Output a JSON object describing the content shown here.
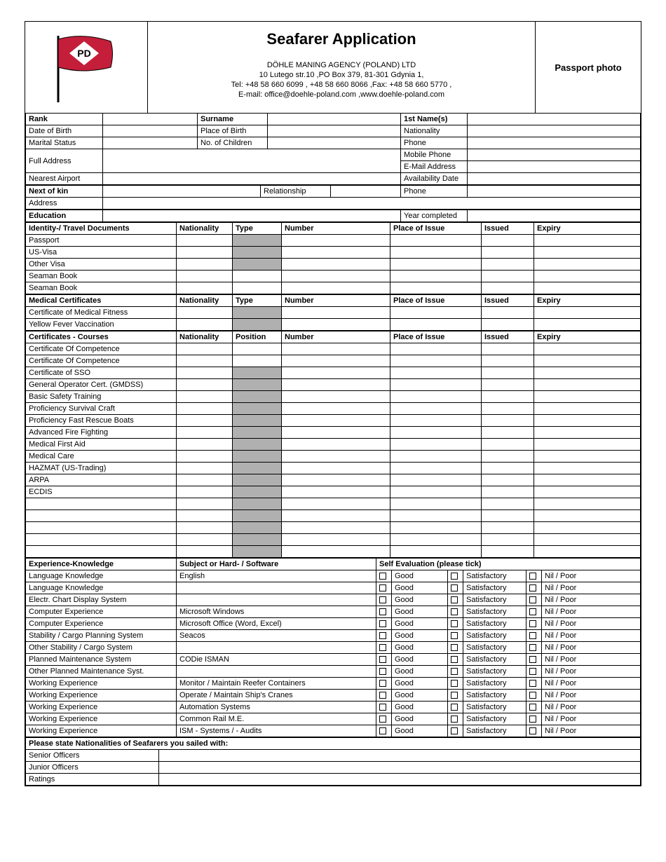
{
  "header": {
    "title": "Seafarer Application",
    "agency": "DÖHLE MANING AGENCY (POLAND) LTD",
    "address": "10 Lutego str.10 ,PO Box 379, 81-301 Gdynia 1,",
    "contact": "Tel: +48 58 660 6099 , +48 58 660 8066 ,Fax: +48 58 660 5770 ,",
    "email": "E-mail: office@doehle-poland.com ,www.doehle-poland.com",
    "photo_label": "Passport photo",
    "logo_text": "PD",
    "logo_flag_color": "#c41e3a",
    "logo_diamond_color": "#ffffff"
  },
  "personal": {
    "rank": "Rank",
    "surname": "Surname",
    "first_names": "1st Name(s)",
    "dob": "Date of Birth",
    "pob": "Place of Birth",
    "nationality": "Nationality",
    "marital": "Marital Status",
    "children": "No. of Children",
    "phone": "Phone",
    "full_address": "Full Address",
    "mobile": "Mobile Phone",
    "email_addr": "E-Mail Address",
    "nearest_airport": "Nearest Airport",
    "availability": "Availability Date",
    "next_of_kin": "Next of kin",
    "relationship": "Relationship",
    "nok_phone": "Phone",
    "nok_address": "Address",
    "education": "Education",
    "year_completed": "Year completed"
  },
  "doc_headers": {
    "identity": "Identity-/ Travel Documents",
    "medical": "Medical Certificates",
    "courses": "Certificates - Courses",
    "nationality": "Nationality",
    "type": "Type",
    "position": "Position",
    "number": "Number",
    "place_issue": "Place of Issue",
    "issued": "Issued",
    "expiry": "Expiry"
  },
  "identity_docs": [
    {
      "label": "Passport",
      "shade_type": true
    },
    {
      "label": "US-Visa",
      "shade_type": true
    },
    {
      "label": "Other Visa",
      "shade_type": true
    },
    {
      "label": "Seaman Book",
      "shade_type": false
    },
    {
      "label": "Seaman Book",
      "shade_type": false
    }
  ],
  "medical_docs": [
    {
      "label": "Certificate of Medical Fitness"
    },
    {
      "label": "Yellow Fever Vaccination"
    }
  ],
  "courses": [
    {
      "label": "Certificate Of Competence",
      "shade_type": false
    },
    {
      "label": "Certificate Of Competence",
      "shade_type": false
    },
    {
      "label": "Certificate of SSO",
      "shade_type": true
    },
    {
      "label": "General Operator Cert. (GMDSS)",
      "shade_type": true
    },
    {
      "label": "Basic Safety Training",
      "shade_type": true
    },
    {
      "label": "Proficiency Survival Craft",
      "shade_type": true
    },
    {
      "label": "Proficiency Fast Rescue Boats",
      "shade_type": true
    },
    {
      "label": "Advanced Fire Fighting",
      "shade_type": true
    },
    {
      "label": "Medical First Aid",
      "shade_type": true
    },
    {
      "label": "Medical Care",
      "shade_type": true
    },
    {
      "label": "HAZMAT (US-Trading)",
      "shade_type": true
    },
    {
      "label": "ARPA",
      "shade_type": true
    },
    {
      "label": "ECDIS",
      "shade_type": true
    },
    {
      "label": "",
      "shade_type": true
    },
    {
      "label": "",
      "shade_type": true
    },
    {
      "label": "",
      "shade_type": true
    },
    {
      "label": "",
      "shade_type": true
    },
    {
      "label": "",
      "shade_type": true
    }
  ],
  "experience": {
    "header_exp": "Experience-Knowledge",
    "header_subject": "Subject or Hard- / Software",
    "header_eval": "Self Evaluation (please tick)",
    "good": "Good",
    "sat": "Satisfactory",
    "nil": "Nil / Poor",
    "rows": [
      {
        "label": "Language Knowledge",
        "subject": "English"
      },
      {
        "label": "Language Knowledge",
        "subject": ""
      },
      {
        "label": "Electr. Chart Display System",
        "subject": ""
      },
      {
        "label": "Computer Experience",
        "subject": "Microsoft Windows"
      },
      {
        "label": "Computer Experience",
        "subject": "Microsoft Office (Word, Excel)"
      },
      {
        "label": "Stability / Cargo Planning System",
        "subject": "Seacos"
      },
      {
        "label": "Other Stability / Cargo System",
        "subject": ""
      },
      {
        "label": "Planned Maintenance System",
        "subject": "CODie ISMAN"
      },
      {
        "label": "Other Planned Maintenance Syst.",
        "subject": ""
      },
      {
        "label": "Working Experience",
        "subject": "Monitor / Maintain Reefer Containers"
      },
      {
        "label": "Working Experience",
        "subject": "Operate / Maintain Ship's Cranes"
      },
      {
        "label": "Working Experience",
        "subject": "Automation Systems"
      },
      {
        "label": "Working Experience",
        "subject": "Common Rail M.E."
      },
      {
        "label": "Working Experience",
        "subject": "ISM - Systems / - Audits"
      }
    ]
  },
  "nationalities": {
    "heading": "Please state Nationalities of Seafarers you sailed with:",
    "rows": [
      "Senior Officers",
      "Junior Officers",
      "Ratings"
    ]
  },
  "colors": {
    "border": "#000000",
    "shade": "#b0b0b0",
    "background": "#ffffff"
  }
}
